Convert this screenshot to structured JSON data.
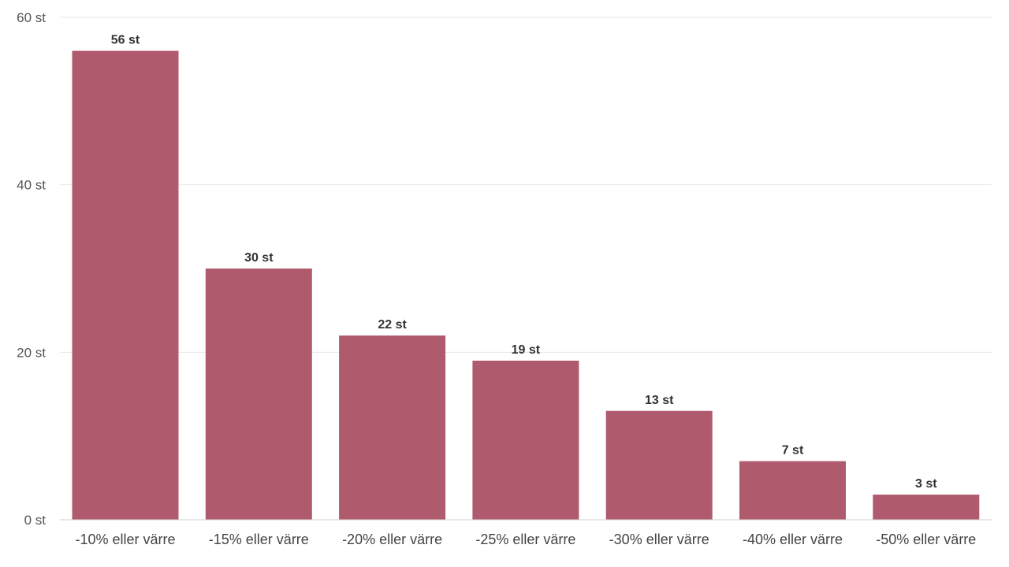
{
  "chart_data": {
    "type": "bar",
    "title": "",
    "xlabel": "",
    "ylabel": "",
    "categories": [
      "-10% eller värre",
      "-15% eller värre",
      "-20% eller värre",
      "-25% eller värre",
      "-30% eller värre",
      "-40% eller värre",
      "-50% eller värre"
    ],
    "values": [
      56,
      30,
      22,
      19,
      13,
      7,
      3
    ],
    "value_labels": [
      "56 st",
      "30 st",
      "22 st",
      "19 st",
      "13 st",
      "7 st",
      "3 st"
    ],
    "ylim": [
      0,
      60
    ],
    "yticks": [
      0,
      20,
      40,
      60
    ],
    "ytick_labels": [
      "0 st",
      "20 st",
      "40 st",
      "60 st"
    ],
    "grid": true,
    "legend": "none",
    "bar_color": "#b05a6e"
  }
}
